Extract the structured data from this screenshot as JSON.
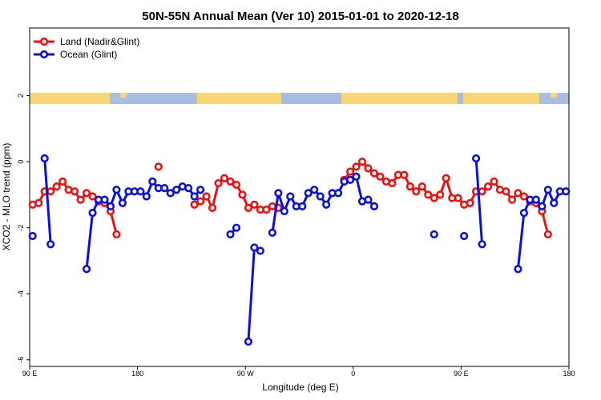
{
  "chart_data": {
    "type": "line",
    "title": "50N-55N Annual Mean (Ver 10)   2015-01-01 to 2020-12-18",
    "x_label": "Longitude (deg E)",
    "y_label": "XCO2 - MLO trend (ppm)",
    "xlim": [
      90,
      540
    ],
    "xticks": [
      {
        "value": 90,
        "label": "90 E"
      },
      180,
      {
        "value": 270,
        "label": "90 W"
      },
      {
        "value": 360,
        "label": "0"
      },
      {
        "value": 450,
        "label": "90 E"
      },
      180
    ],
    "ylim": [
      -6.2,
      4.05
    ],
    "yticks": [
      -6,
      -4,
      -2,
      0,
      2
    ],
    "legend": "top-left",
    "series": [
      {
        "name": "Land (Nadir&Glint)",
        "color": "#ee1111",
        "x": [
          92.5,
          97.5,
          102.5,
          107.5,
          112.5,
          117.5,
          122.5,
          127.5,
          132.5,
          137.5,
          142.5,
          147.5,
          152.5,
          157.5,
          162.5,
          167.5,
          197.5,
          202.5,
          227.5,
          232.5,
          237.5,
          242.5,
          247.5,
          252.5,
          257.5,
          262.5,
          267.5,
          272.5,
          277.5,
          282.5,
          287.5,
          292.5,
          297.5,
          302.5,
          352.5,
          357.5,
          362.5,
          367.5,
          372.5,
          377.5,
          382.5,
          387.5,
          392.5,
          397.5,
          402.5,
          407.5,
          412.5,
          417.5,
          422.5,
          427.5,
          432.5,
          437.5,
          442.5,
          447.5,
          452.5,
          457.5,
          462.5,
          467.5,
          472.5,
          477.5,
          482.5,
          487.5,
          492.5,
          497.5,
          502.5,
          507.5,
          512.5,
          517.5,
          522.5
        ],
        "values": [
          -1.3,
          -1.25,
          -0.9,
          -0.9,
          -0.75,
          -0.6,
          -0.85,
          -0.9,
          -1.15,
          -0.95,
          -1.05,
          -1.2,
          -1.25,
          -1.5,
          -2.2,
          null,
          -0.15,
          null,
          -1.3,
          -1.2,
          -1.05,
          -1.4,
          -0.65,
          -0.5,
          -0.6,
          -0.7,
          -1.0,
          -1.4,
          -1.3,
          -1.45,
          -1.45,
          -1.35,
          -1.4,
          null,
          -0.55,
          -0.3,
          -0.15,
          0,
          -0.2,
          -0.35,
          -0.45,
          -0.6,
          -0.65,
          -0.4,
          -0.4,
          -0.75,
          -0.9,
          -0.75,
          -1.0,
          -1.1,
          -1.0,
          -0.5,
          -1.1,
          -1.1,
          -1.3,
          -1.25,
          -0.9,
          -0.9,
          -0.75,
          -0.6,
          -0.85,
          -0.9,
          -1.15,
          -0.95,
          -1.05,
          -1.2,
          -1.25,
          -1.5,
          -2.2
        ]
      },
      {
        "name": "Ocean (Glint)",
        "color": "#0a10dd",
        "x": [
          92.5,
          97.5,
          102.5,
          107.5,
          112.5,
          137.5,
          142.5,
          147.5,
          152.5,
          157.5,
          162.5,
          167.5,
          172.5,
          177.5,
          182.5,
          187.5,
          192.5,
          197.5,
          202.5,
          207.5,
          212.5,
          217.5,
          222.5,
          227.5,
          232.5,
          237.5,
          257.5,
          262.5,
          267.5,
          272.5,
          277.5,
          282.5,
          287.5,
          292.5,
          297.5,
          302.5,
          307.5,
          312.5,
          317.5,
          322.5,
          327.5,
          332.5,
          337.5,
          342.5,
          347.5,
          352.5,
          357.5,
          362.5,
          367.5,
          372.5,
          377.5,
          382.5,
          427.5,
          432.5,
          452.5,
          457.5,
          462.5,
          467.5,
          472.5,
          497.5,
          502.5,
          507.5,
          512.5,
          517.5,
          522.5,
          527.5,
          532.5,
          537.5
        ],
        "values": [
          -2.25,
          null,
          0.1,
          -2.5,
          null,
          -3.25,
          -1.55,
          -1.15,
          -1.15,
          -1.35,
          -0.85,
          -1.25,
          -0.9,
          -0.9,
          -0.9,
          -1.05,
          -0.6,
          -0.8,
          -0.8,
          -0.95,
          -0.85,
          -0.75,
          -0.8,
          -1.05,
          -0.85,
          null,
          -2.2,
          -2.0,
          null,
          -5.45,
          -2.6,
          -2.7,
          null,
          -2.15,
          -0.95,
          -1.5,
          -1.05,
          -1.35,
          -1.35,
          -0.95,
          -0.85,
          -1.05,
          -1.3,
          -0.95,
          -0.95,
          -0.6,
          -0.55,
          -0.45,
          -1.2,
          -1.15,
          -1.35,
          null,
          -2.2,
          null,
          -2.25,
          null,
          0.1,
          -2.5,
          null,
          -3.25,
          -1.55,
          -1.15,
          -1.15,
          -1.35,
          -0.85,
          -1.25,
          -0.9,
          -0.9
        ]
      }
    ]
  }
}
